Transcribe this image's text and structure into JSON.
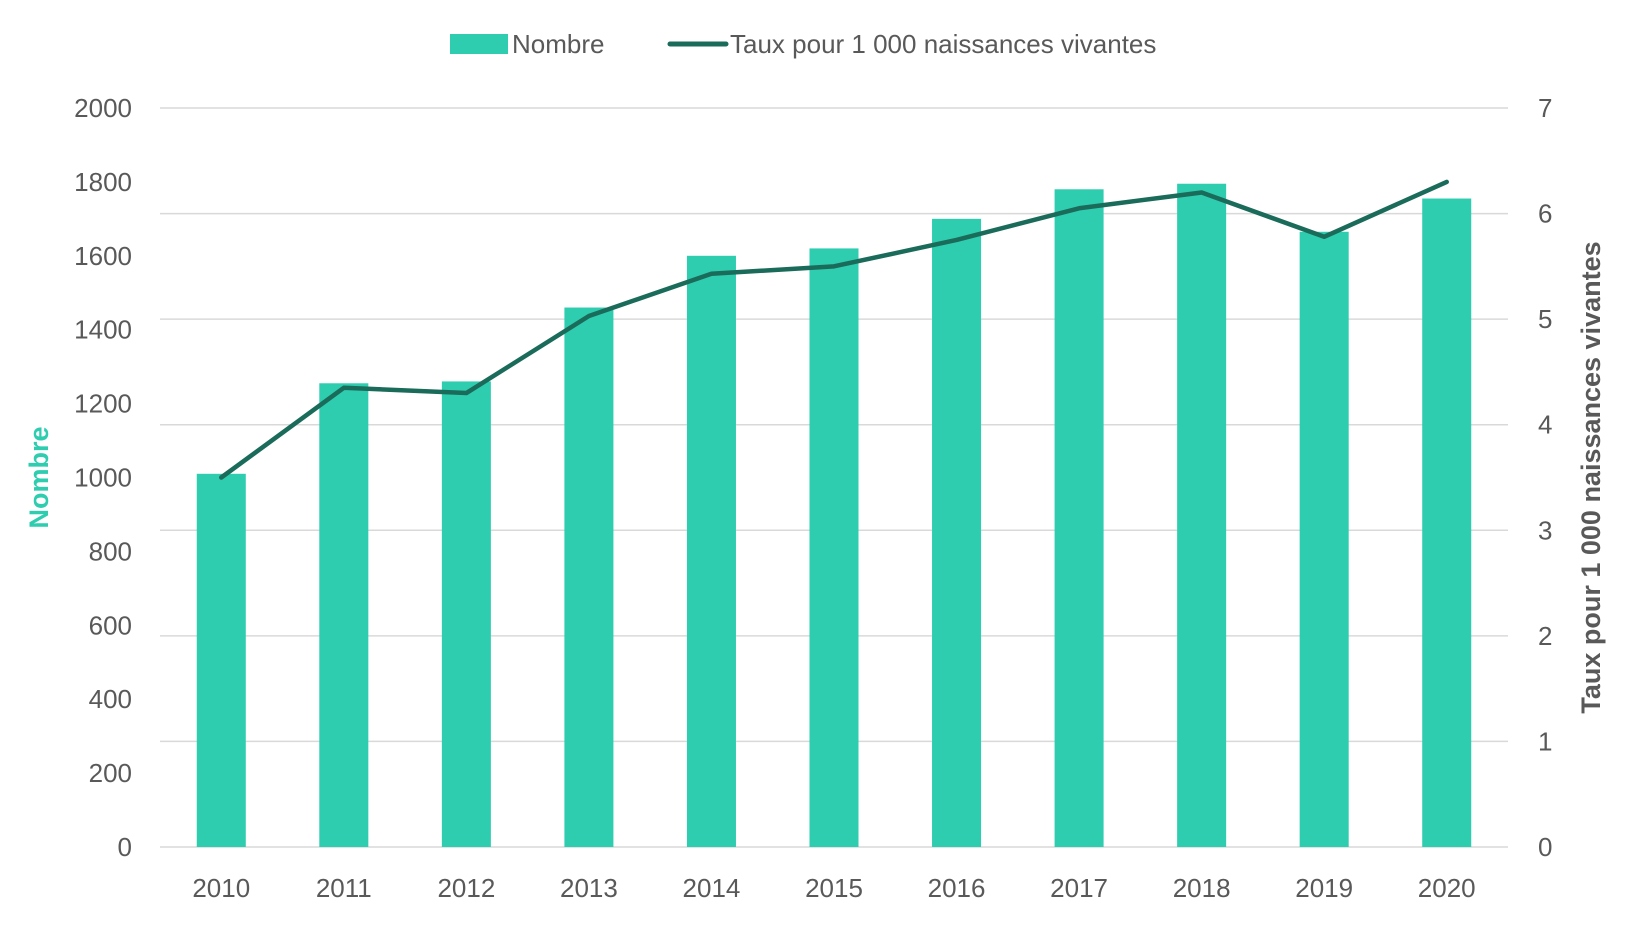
{
  "chart_data": {
    "type": "bar",
    "categories": [
      "2010",
      "2011",
      "2012",
      "2013",
      "2014",
      "2015",
      "2016",
      "2017",
      "2018",
      "2019",
      "2020"
    ],
    "series": [
      {
        "name": "Nombre",
        "type": "bar",
        "axis": "left",
        "color": "#2ECDB0",
        "values": [
          1010,
          1255,
          1260,
          1460,
          1600,
          1620,
          1700,
          1780,
          1795,
          1665,
          1755
        ]
      },
      {
        "name": "Taux pour 1 000 naissances vivantes",
        "type": "line",
        "axis": "right",
        "color": "#1A6B5A",
        "values": [
          3.5,
          4.35,
          4.3,
          5.03,
          5.43,
          5.5,
          5.75,
          6.05,
          6.2,
          5.78,
          6.3
        ]
      }
    ],
    "ylabel": "Nombre",
    "ylabel_color": "#2ECDB0",
    "ylim": [
      0,
      2000
    ],
    "yticks": [
      "0",
      "200",
      "400",
      "600",
      "800",
      "1000",
      "1200",
      "1400",
      "1600",
      "1800",
      "2000"
    ],
    "y2label": "Taux pour 1 000 naissances vivantes",
    "y2label_color": "#595959",
    "y2lim": [
      0,
      7
    ],
    "y2ticks": [
      "0",
      "1",
      "2",
      "3",
      "4",
      "5",
      "6",
      "7"
    ],
    "grid": true,
    "legend": "top-center"
  }
}
